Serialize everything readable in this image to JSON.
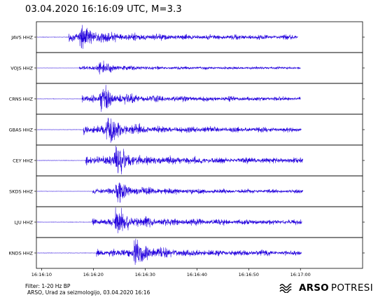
{
  "title": "03.04.2020  16:16:09 UTC, M=3.3",
  "footer": {
    "filter": "Filter: 1-20 Hz BP",
    "agency": "ARSO, Urad za seizmologijo, 03.04.2020  16:16",
    "logo_bold": "ARSO",
    "logo_light": "POTRESI"
  },
  "colors": {
    "trace": "#2200dd",
    "frame": "#000000",
    "background": "#ffffff"
  },
  "chart_data": {
    "type": "line",
    "xlabel": "",
    "ylabel": "",
    "x_unit": "seconds after 16:16:09 UTC",
    "xlim": [
      0,
      63
    ],
    "x_ticks": [
      {
        "label": "16:16:10",
        "value": 1
      },
      {
        "label": "16:16:20",
        "value": 11
      },
      {
        "label": "16:16:30",
        "value": 21
      },
      {
        "label": "16:16:40",
        "value": 31
      },
      {
        "label": "16:16:50",
        "value": 41
      },
      {
        "label": "16:17:00",
        "value": 51
      }
    ],
    "grid": false,
    "legend": "none",
    "series": [
      {
        "name": "JAVS HHZ",
        "signal_start": 6.3,
        "peak_time": 8.4,
        "trace_end": 50.5,
        "peak_amp": 1.0
      },
      {
        "name": "VOJS HHZ",
        "signal_start": 8.2,
        "peak_time": 12.0,
        "trace_end": 51.0,
        "peak_amp": 0.5
      },
      {
        "name": "CRNS HHZ",
        "signal_start": 8.8,
        "peak_time": 12.2,
        "trace_end": 51.0,
        "peak_amp": 0.9
      },
      {
        "name": "GBAS HHZ",
        "signal_start": 9.0,
        "peak_time": 13.5,
        "trace_end": 51.2,
        "peak_amp": 1.0
      },
      {
        "name": "CEY HHZ",
        "signal_start": 9.5,
        "peak_time": 15.0,
        "trace_end": 51.5,
        "peak_amp": 1.1
      },
      {
        "name": "SKDS HHZ",
        "signal_start": 10.9,
        "peak_time": 15.3,
        "trace_end": 51.5,
        "peak_amp": 0.8
      },
      {
        "name": "LJU HHZ",
        "signal_start": 10.8,
        "peak_time": 15.2,
        "trace_end": 51.3,
        "peak_amp": 1.0
      },
      {
        "name": "KNDS HHZ",
        "signal_start": 11.6,
        "peak_time": 18.8,
        "trace_end": 51.2,
        "peak_amp": 1.0
      }
    ]
  }
}
